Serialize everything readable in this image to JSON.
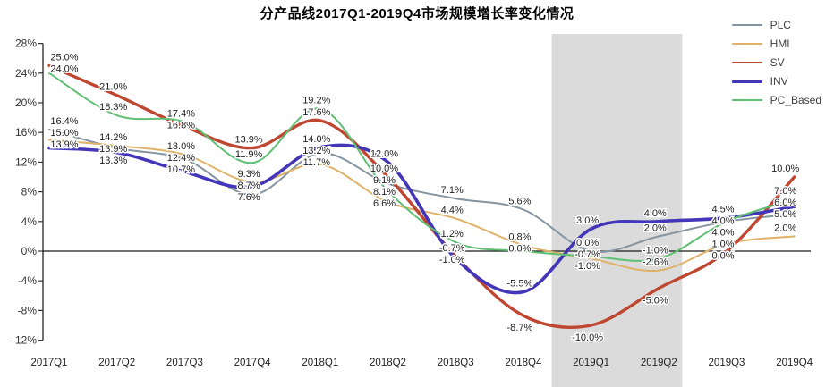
{
  "chart_data": {
    "type": "line",
    "title": "分产品线2017Q1-2019Q4市场规模增长率变化情况",
    "categories": [
      "2017Q1",
      "2017Q2",
      "2017Q3",
      "2017Q4",
      "2018Q1",
      "2018Q2",
      "2018Q3",
      "2018Q4",
      "2019Q1",
      "2019Q2",
      "2019Q3",
      "2019Q4"
    ],
    "series": [
      {
        "name": "PLC",
        "color": "#8494a0",
        "line_width": 2,
        "values": [
          16.4,
          13.9,
          12.4,
          7.6,
          13.2,
          9.1,
          7.1,
          5.6,
          0.0,
          2.0,
          4.0,
          5.0
        ]
      },
      {
        "name": "HMI",
        "color": "#dfb269",
        "line_width": 2,
        "values": [
          15.0,
          14.2,
          13.0,
          9.3,
          11.7,
          6.6,
          4.4,
          0.8,
          -1.0,
          -2.6,
          1.0,
          2.0
        ]
      },
      {
        "name": "SV",
        "color": "#bf4732",
        "line_width": 3.4,
        "values": [
          25.0,
          21.0,
          16.8,
          13.9,
          17.6,
          10.0,
          -0.7,
          -8.7,
          -10.0,
          -5.0,
          0.0,
          10.0
        ]
      },
      {
        "name": "INV",
        "color": "#4336b8",
        "line_width": 3.6,
        "values": [
          13.9,
          13.3,
          10.7,
          8.7,
          14.0,
          12.0,
          -1.0,
          -5.5,
          3.0,
          4.0,
          4.5,
          6.0
        ]
      },
      {
        "name": "PC_Based",
        "color": "#5fbf72",
        "line_width": 2,
        "values": [
          24.0,
          18.3,
          17.4,
          11.9,
          19.2,
          8.1,
          1.2,
          0.0,
          -0.7,
          -1.0,
          4.0,
          7.0
        ]
      }
    ],
    "y_ticks": [
      28,
      24,
      20,
      16,
      12,
      8,
      4,
      0,
      -4,
      -8,
      -12
    ],
    "ylim": [
      -12,
      28
    ],
    "value_suffix": "%",
    "data_labels": true,
    "grid": false,
    "legend_position": "top-right",
    "highlight_band": {
      "from": "2019Q1",
      "to": "2019Q2",
      "color": "#dbdbdb"
    },
    "axis_color": "#333333",
    "zero_line_color": "#1a1a1a",
    "label_text_color": "#1f1f1f"
  }
}
